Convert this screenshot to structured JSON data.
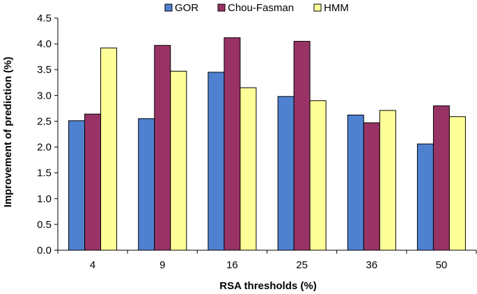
{
  "chart_data": {
    "type": "bar",
    "title": "",
    "xlabel": "RSA thresholds (%)",
    "ylabel": "Improvement of prediction (%)",
    "categories": [
      "4",
      "9",
      "16",
      "25",
      "36",
      "50"
    ],
    "ylim": [
      0,
      4.5
    ],
    "yticks": [
      "0.0",
      "0.5",
      "1.0",
      "1.5",
      "2.0",
      "2.5",
      "3.0",
      "3.5",
      "4.0",
      "4.5"
    ],
    "legend_position": "top-center",
    "grid": false,
    "series": [
      {
        "name": "GOR",
        "color": "#4f81d1",
        "values": [
          2.51,
          2.55,
          3.45,
          2.98,
          2.62,
          2.06
        ]
      },
      {
        "name": "Chou-Fasman",
        "color": "#993366",
        "values": [
          2.64,
          3.97,
          4.12,
          4.05,
          2.47,
          2.8
        ]
      },
      {
        "name": "HMM",
        "color": "#ffff99",
        "values": [
          3.92,
          3.47,
          3.15,
          2.9,
          2.71,
          2.59
        ]
      }
    ]
  }
}
